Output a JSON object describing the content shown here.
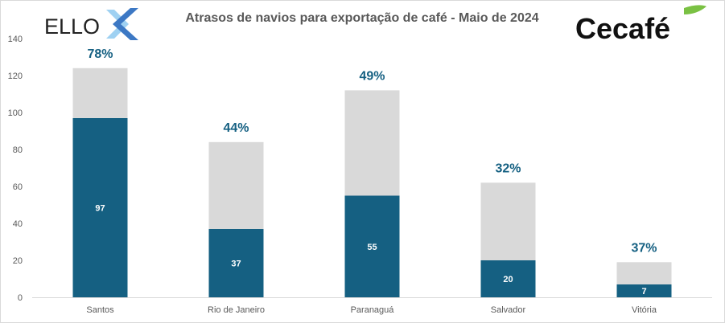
{
  "logos": {
    "left": "ELLOX",
    "right": "Cecafé"
  },
  "chart_data": {
    "type": "bar",
    "stacked": true,
    "title": "Atrasos de navios para exportação de café - Maio de 2024",
    "categories": [
      "Santos",
      "Rio de Janeiro",
      "Paranaguá",
      "Salvador",
      "Vitória"
    ],
    "series": [
      {
        "values": [
          97,
          37,
          55,
          20,
          7
        ],
        "color": "#156082"
      },
      {
        "values": [
          27,
          47,
          57,
          42,
          12
        ],
        "color": "#D9D9D9"
      }
    ],
    "percent_labels": [
      "78%",
      "44%",
      "49%",
      "32%",
      "37%"
    ],
    "ylim": [
      0,
      140
    ],
    "yticks": [
      0,
      20,
      40,
      60,
      80,
      100,
      120,
      140
    ],
    "grid": false
  }
}
